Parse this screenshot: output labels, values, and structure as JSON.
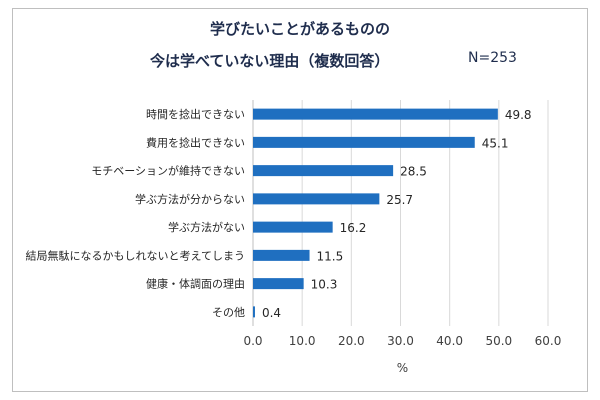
{
  "header": {
    "title_line1": "学びたいことがあるものの",
    "title_line2": "今は学べていない理由（複数回答）",
    "sample_size": "N=253"
  },
  "chart_data": {
    "type": "bar",
    "orientation": "horizontal",
    "title": "学びたいことがあるものの 今は学べていない理由（複数回答）",
    "categories": [
      "時間を捻出できない",
      "費用を捻出できない",
      "モチベーションが維持できない",
      "学ぶ方法が分からない",
      "学ぶ方法がない",
      "結局無駄になるかもしれないと考えてしまう",
      "健康・体調面の理由",
      "その他"
    ],
    "values": [
      49.8,
      45.1,
      28.5,
      25.7,
      16.2,
      11.5,
      10.3,
      0.4
    ],
    "value_labels": [
      "49.8",
      "45.1",
      "28.5",
      "25.7",
      "16.2",
      "11.5",
      "10.3",
      "0.4"
    ],
    "xlim": [
      0,
      60
    ],
    "xticks": [
      0,
      10,
      20,
      30,
      40,
      50,
      60
    ],
    "xtick_labels": [
      "0.0",
      "10.0",
      "20.0",
      "30.0",
      "40.0",
      "50.0",
      "60.0"
    ],
    "xlabel": "%",
    "ylabel": "",
    "grid": true,
    "bar_color": "#1f6fc0"
  }
}
